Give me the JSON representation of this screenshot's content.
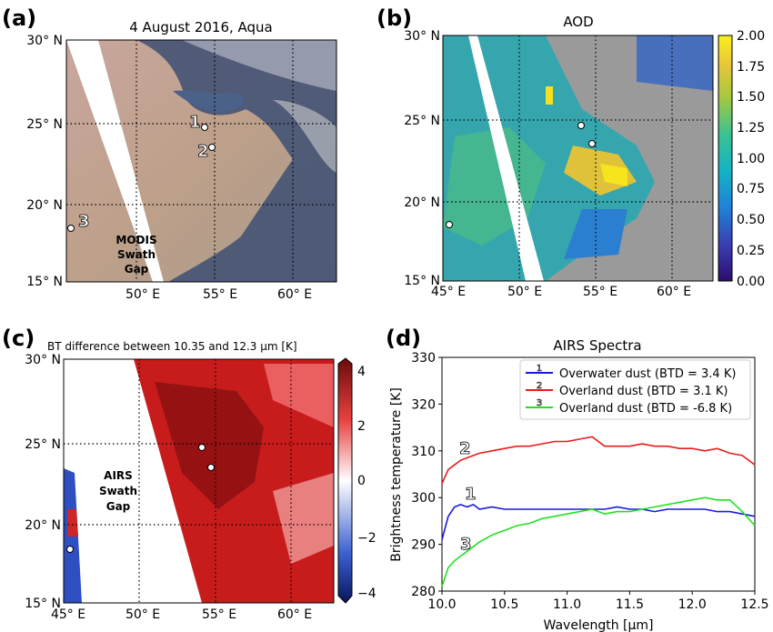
{
  "panels": {
    "a": {
      "label": "(a)",
      "title": "4 August 2016, Aqua",
      "lat_ticks": [
        "30° N",
        "25° N",
        "20° N",
        "15° N"
      ],
      "lon_ticks": [
        "50° E",
        "55° E",
        "60° E"
      ],
      "gap_label": [
        "MODIS",
        "Swath",
        "Gap"
      ],
      "site_labels": [
        "1",
        "2",
        "3"
      ]
    },
    "b": {
      "label": "(b)",
      "title": "AOD",
      "lat_ticks": [
        "30° N",
        "25° N",
        "20° N",
        "15° N"
      ],
      "lon_ticks": [
        "45° E",
        "50° E",
        "55° E",
        "60° E"
      ],
      "colorbar_ticks": [
        "2.00",
        "1.75",
        "1.50",
        "1.25",
        "1.00",
        "0.75",
        "0.50",
        "0.25",
        "0.00"
      ]
    },
    "c": {
      "label": "(c)",
      "title": "BT difference between 10.35 and 12.3 μm [K]",
      "lat_ticks": [
        "30° N",
        "25° N",
        "20° N",
        "15° N"
      ],
      "lon_ticks": [
        "45° E",
        "50° E",
        "55° E",
        "60° E"
      ],
      "gap_label": [
        "AIRS",
        "Swath",
        "Gap"
      ],
      "colorbar_ticks": [
        "4",
        "2",
        "0",
        "−2",
        "−4"
      ]
    },
    "d": {
      "label": "(d)",
      "title": "AIRS Spectra",
      "xlabel": "Wavelength [μm]",
      "ylabel": "Brightness temperature [K]",
      "curve_labels": [
        "1",
        "2",
        "3"
      ]
    }
  },
  "chart_data": {
    "type": "line",
    "title": "AIRS Spectra",
    "xlabel": "Wavelength [μm]",
    "ylabel": "Brightness temperature [K]",
    "xlim": [
      10.0,
      12.5
    ],
    "ylim": [
      280,
      330
    ],
    "xticks": [
      "10.0",
      "10.5",
      "11.0",
      "11.5",
      "12.0",
      "12.5"
    ],
    "yticks": [
      "280",
      "290",
      "300",
      "310",
      "320",
      "330"
    ],
    "legend_position": "top-right",
    "series": [
      {
        "name": "Overwater dust (BTD = 3.4 K)",
        "label": "1",
        "color": "#1a1adb",
        "x": [
          10.0,
          10.05,
          10.1,
          10.15,
          10.2,
          10.25,
          10.3,
          10.4,
          10.5,
          10.6,
          10.7,
          10.8,
          10.9,
          11.0,
          11.1,
          11.2,
          11.3,
          11.4,
          11.5,
          11.6,
          11.7,
          11.8,
          11.9,
          12.0,
          12.1,
          12.2,
          12.3,
          12.4,
          12.5
        ],
        "y": [
          291,
          296,
          298,
          298.5,
          298,
          298.5,
          297.5,
          298,
          297.5,
          297.5,
          297.5,
          297.5,
          297.5,
          297.5,
          297.5,
          297.5,
          297.5,
          298,
          297.5,
          297.5,
          297,
          297.5,
          297.5,
          297.5,
          297.5,
          297,
          297,
          296.5,
          296
        ]
      },
      {
        "name": "Overland dust (BTD = 3.1 K)",
        "label": "2",
        "color": "#e81c1c",
        "x": [
          10.0,
          10.05,
          10.1,
          10.15,
          10.2,
          10.25,
          10.3,
          10.4,
          10.5,
          10.6,
          10.7,
          10.8,
          10.9,
          11.0,
          11.1,
          11.2,
          11.3,
          11.4,
          11.5,
          11.6,
          11.7,
          11.8,
          11.9,
          12.0,
          12.1,
          12.2,
          12.3,
          12.4,
          12.5
        ],
        "y": [
          303,
          306,
          307,
          308,
          308.5,
          309,
          309.5,
          310,
          310.5,
          311,
          311,
          311.5,
          312,
          312,
          312.5,
          313,
          311,
          311,
          311,
          311.5,
          311,
          311,
          310.5,
          310.5,
          310,
          310.5,
          309.5,
          309,
          307
        ]
      },
      {
        "name": "Overland dust (BTD = -6.8 K)",
        "label": "3",
        "color": "#22e022",
        "x": [
          10.0,
          10.05,
          10.1,
          10.15,
          10.2,
          10.25,
          10.3,
          10.4,
          10.5,
          10.6,
          10.7,
          10.8,
          10.9,
          11.0,
          11.1,
          11.2,
          11.3,
          11.4,
          11.5,
          11.6,
          11.7,
          11.8,
          11.9,
          12.0,
          12.1,
          12.2,
          12.3,
          12.4,
          12.5
        ],
        "y": [
          281,
          285,
          286.5,
          287.5,
          288.5,
          289.5,
          290.5,
          292,
          293,
          294,
          294.5,
          295.5,
          296,
          296.5,
          297,
          297.5,
          296.5,
          297,
          297,
          297.5,
          298,
          298.5,
          299,
          299.5,
          300,
          299.5,
          299.5,
          297,
          294
        ]
      }
    ]
  }
}
